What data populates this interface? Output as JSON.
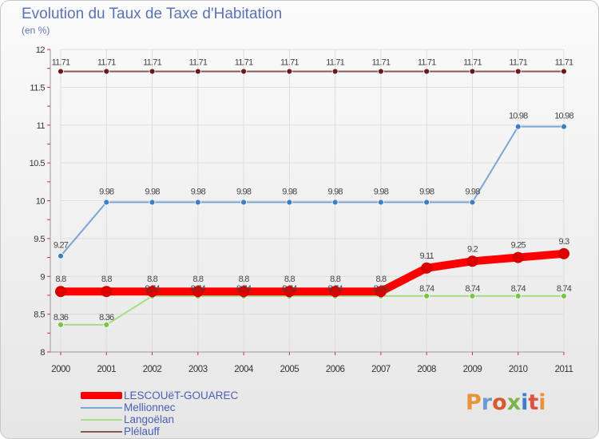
{
  "colors": {
    "axis": "#999999",
    "grid": "#dddddd",
    "tick_text": "#333333",
    "label_text": "#444444",
    "brand_letters": [
      "#e8933a",
      "#6a9bd6",
      "#d75a2e",
      "#7ab648",
      "#3f7ec7",
      "#e04f3f"
    ]
  },
  "chart_data": {
    "type": "line",
    "title": "Evolution du Taux de Taxe d'Habitation",
    "subtitle": "(en %)",
    "xlabel": "",
    "ylabel": "",
    "x": [
      "2000",
      "2001",
      "2002",
      "2003",
      "2004",
      "2005",
      "2006",
      "2007",
      "2008",
      "2009",
      "2010",
      "2011"
    ],
    "ylim": [
      8,
      12
    ],
    "yticks": [
      "8",
      "8.5",
      "9",
      "9.5",
      "10",
      "10.5",
      "11",
      "11.5",
      "12"
    ],
    "grid": true,
    "legend_position": "bottom-left",
    "series": [
      {
        "name": "LESCOUëT-GOUAREC",
        "color": "#ff0000",
        "marker_color": "#dd0000",
        "emphasis": true,
        "values": [
          8.8,
          8.8,
          8.8,
          8.8,
          8.8,
          8.8,
          8.8,
          8.8,
          9.11,
          9.2,
          9.25,
          9.3
        ],
        "labels": [
          "8.8",
          "8.8",
          "8.8",
          "8.8",
          "8.8",
          "8.8",
          "8.8",
          "8.8",
          "9.11",
          "9.2",
          "9.25",
          "9.3"
        ]
      },
      {
        "name": "Mellionnec",
        "color": "#7aa6d6",
        "marker_color": "#3d7fc1",
        "emphasis": false,
        "values": [
          9.27,
          9.98,
          9.98,
          9.98,
          9.98,
          9.98,
          9.98,
          9.98,
          9.98,
          9.98,
          10.98,
          10.98
        ],
        "labels": [
          "9.27",
          "9.98",
          "9.98",
          "9.98",
          "9.98",
          "9.98",
          "9.98",
          "9.98",
          "9.98",
          "9.98",
          "10.98",
          "10.98"
        ]
      },
      {
        "name": "Langoëlan",
        "color": "#a8dd86",
        "marker_color": "#7cc544",
        "emphasis": false,
        "values": [
          8.36,
          8.36,
          8.74,
          8.74,
          8.74,
          8.74,
          8.74,
          8.74,
          8.74,
          8.74,
          8.74,
          8.74
        ],
        "labels": [
          "8.36",
          "8.36",
          "8.74",
          "8.74",
          "8.74",
          "8.74",
          "8.74",
          "8.74",
          "8.74",
          "8.74",
          "8.74",
          "8.74"
        ]
      },
      {
        "name": "Plélauff",
        "color": "#8a5656",
        "marker_color": "#6a1a1a",
        "emphasis": false,
        "values": [
          11.71,
          11.71,
          11.71,
          11.71,
          11.71,
          11.71,
          11.71,
          11.71,
          11.71,
          11.71,
          11.71,
          11.71
        ],
        "labels": [
          "11.71",
          "11.71",
          "11.71",
          "11.71",
          "11.71",
          "11.71",
          "11.71",
          "11.71",
          "11.71",
          "11.71",
          "11.71",
          "11.71"
        ]
      }
    ]
  },
  "legend_order": [
    0,
    1,
    2,
    3
  ],
  "brand": {
    "text": "Proxiti",
    "letters": [
      "P",
      "r",
      "o",
      "x",
      "i",
      "t",
      "i"
    ]
  }
}
